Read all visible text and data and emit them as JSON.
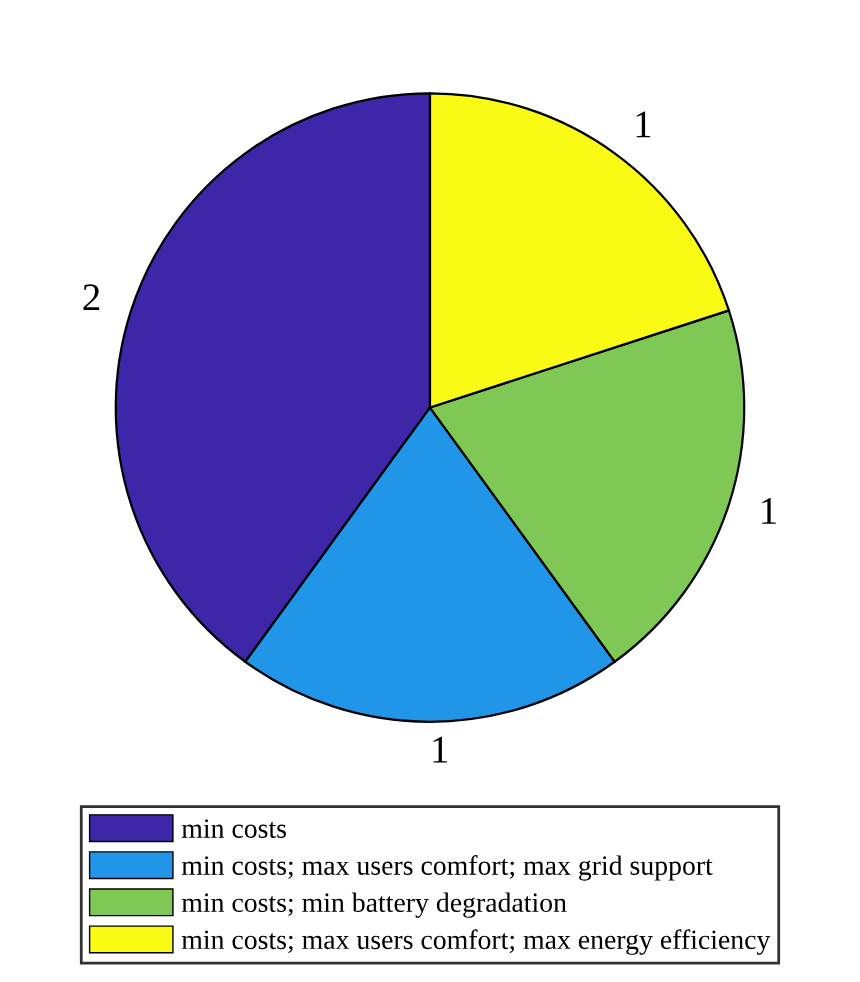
{
  "chart_data": {
    "type": "pie",
    "categories": [
      "min costs",
      "min costs; max users comfort; max grid support",
      "min costs; min battery degradation",
      "min costs; max users comfort; max energy efficiency"
    ],
    "values": [
      2,
      1,
      1,
      1
    ],
    "colors": [
      "#3e26a8",
      "#2196e8",
      "#80c855",
      "#f9fb15"
    ],
    "data_labels": true,
    "legend": "bottom"
  }
}
